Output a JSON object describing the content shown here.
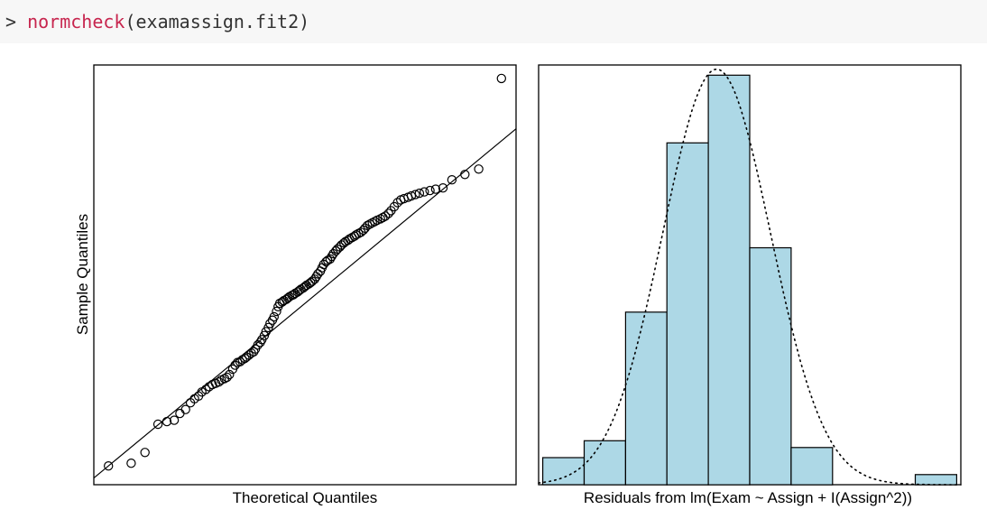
{
  "console": {
    "prompt": "> ",
    "function_name": "normcheck",
    "arguments": "(examassign.fit2)"
  },
  "chart_data": [
    {
      "type": "scatter",
      "title": "",
      "xlabel": "Theoretical Quantiles",
      "ylabel": "Sample Quantiles",
      "xlim": [
        -2.6,
        2.6
      ],
      "ylim": [
        -2.7,
        3.55
      ],
      "reference_line": {
        "intercept": 0,
        "slope": 1.0
      },
      "points": {
        "x": [
          -2.42,
          -2.14,
          -1.97,
          -1.81,
          -1.7,
          -1.61,
          -1.54,
          -1.47,
          -1.41,
          -1.36,
          -1.31,
          -1.27,
          -1.22,
          -1.18,
          -1.14,
          -1.1,
          -1.06,
          -1.03,
          -0.99,
          -0.96,
          -0.93,
          -0.89,
          -0.86,
          -0.83,
          -0.8,
          -0.77,
          -0.74,
          -0.72,
          -0.69,
          -0.66,
          -0.63,
          -0.61,
          -0.58,
          -0.55,
          -0.53,
          -0.5,
          -0.48,
          -0.45,
          -0.43,
          -0.4,
          -0.38,
          -0.35,
          -0.33,
          -0.31,
          -0.28,
          -0.26,
          -0.23,
          -0.21,
          -0.19,
          -0.16,
          -0.14,
          -0.12,
          -0.09,
          -0.07,
          -0.05,
          -0.02,
          0.0,
          0.02,
          0.05,
          0.07,
          0.09,
          0.12,
          0.14,
          0.16,
          0.19,
          0.21,
          0.23,
          0.26,
          0.28,
          0.31,
          0.33,
          0.35,
          0.38,
          0.4,
          0.43,
          0.45,
          0.48,
          0.5,
          0.53,
          0.55,
          0.58,
          0.61,
          0.63,
          0.66,
          0.69,
          0.72,
          0.74,
          0.77,
          0.8,
          0.83,
          0.86,
          0.89,
          0.93,
          0.96,
          0.99,
          1.03,
          1.06,
          1.1,
          1.14,
          1.18,
          1.22,
          1.27,
          1.31,
          1.36,
          1.41,
          1.47,
          1.54,
          1.61,
          1.7,
          1.81,
          1.97,
          2.14,
          2.42
        ],
        "y": [
          -2.42,
          -2.38,
          -2.22,
          -1.8,
          -1.76,
          -1.74,
          -1.64,
          -1.58,
          -1.48,
          -1.42,
          -1.38,
          -1.32,
          -1.28,
          -1.24,
          -1.21,
          -1.19,
          -1.17,
          -1.14,
          -1.12,
          -1.1,
          -1.06,
          -0.98,
          -0.92,
          -0.88,
          -0.87,
          -0.84,
          -0.82,
          -0.8,
          -0.77,
          -0.74,
          -0.72,
          -0.68,
          -0.62,
          -0.58,
          -0.54,
          -0.48,
          -0.42,
          -0.36,
          -0.3,
          -0.25,
          -0.2,
          -0.12,
          -0.05,
          0.0,
          0.02,
          0.04,
          0.06,
          0.08,
          0.1,
          0.12,
          0.13,
          0.15,
          0.17,
          0.19,
          0.21,
          0.23,
          0.25,
          0.27,
          0.29,
          0.31,
          0.33,
          0.36,
          0.4,
          0.44,
          0.48,
          0.53,
          0.58,
          0.62,
          0.64,
          0.66,
          0.7,
          0.74,
          0.78,
          0.81,
          0.84,
          0.87,
          0.9,
          0.92,
          0.94,
          0.96,
          0.98,
          1.0,
          1.02,
          1.04,
          1.06,
          1.09,
          1.12,
          1.16,
          1.18,
          1.2,
          1.22,
          1.24,
          1.26,
          1.28,
          1.3,
          1.34,
          1.38,
          1.44,
          1.5,
          1.54,
          1.56,
          1.58,
          1.6,
          1.62,
          1.64,
          1.66,
          1.68,
          1.7,
          1.72,
          1.84,
          1.92,
          2.0,
          3.35
        ]
      }
    },
    {
      "type": "bar",
      "title": "",
      "xlabel": "Residuals from lm(Exam ~ Assign + I(Assign^2))",
      "ylabel": "",
      "bin_edges": [
        -3,
        -2.5,
        -2,
        -1.5,
        -1,
        -0.5,
        0,
        0.5,
        1,
        1.5,
        2
      ],
      "values": [
        0.04,
        0.065,
        0.255,
        0.505,
        0.605,
        0.35,
        0.055,
        0,
        0,
        0.015
      ],
      "ylim": [
        0,
        0.62
      ],
      "normal_density": {
        "mean": -0.9,
        "sd": 0.65
      },
      "bar_color": "#add8e6"
    }
  ]
}
